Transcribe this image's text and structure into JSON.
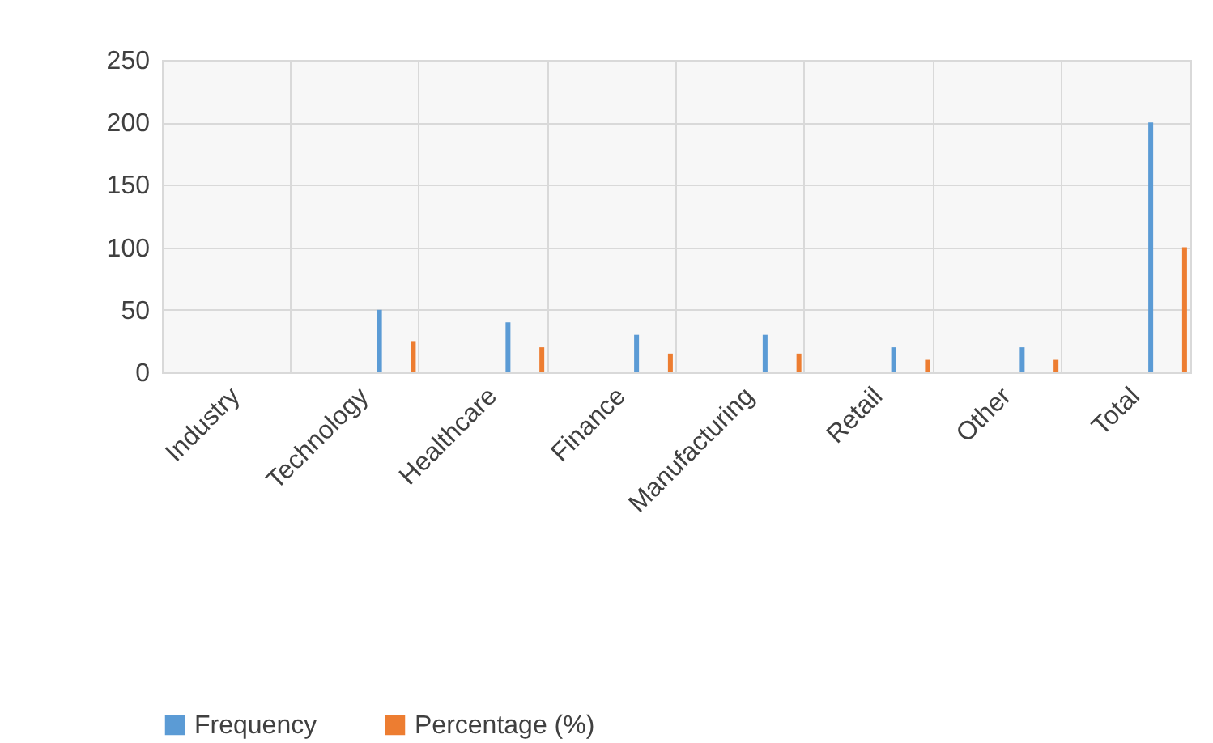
{
  "chart_data": {
    "type": "bar",
    "categories": [
      "Industry",
      "Technology",
      "Healthcare",
      "Finance",
      "Manufacturing",
      "Retail",
      "Other",
      "Total"
    ],
    "series": [
      {
        "name": "Frequency",
        "color": "#5b9bd5",
        "values": [
          null,
          50,
          40,
          30,
          30,
          20,
          20,
          200
        ]
      },
      {
        "name": "Percentage (%)",
        "color": "#ed7d31",
        "values": [
          null,
          25,
          20,
          15,
          15,
          10,
          10,
          100
        ]
      }
    ],
    "ylim": [
      0,
      250
    ],
    "yticks": [
      0,
      50,
      100,
      150,
      200,
      250
    ],
    "grid": true,
    "legend": "bottom"
  }
}
